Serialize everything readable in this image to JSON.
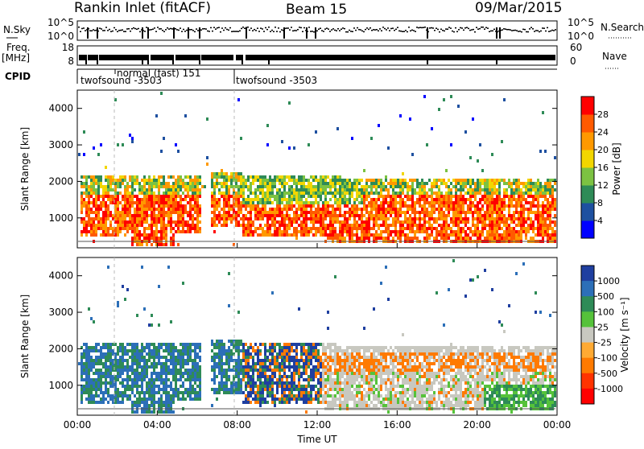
{
  "header": {
    "station": "Rankin Inlet (fitACF)",
    "beam": "Beam 15",
    "date": "09/Mar/2015"
  },
  "strips": {
    "nsky_label": "N.Sky",
    "nsky_ticks": [
      "10^5",
      "10^0"
    ],
    "nsearch_label": "N.Search",
    "nsearch_ticks": [
      "10^5",
      "10^0"
    ],
    "freq_label": "Freq.",
    "freq_unit": "[MHz]",
    "freq_ticks": [
      "18",
      "8"
    ],
    "nave_label": "Nave",
    "nave_ticks": [
      "60",
      "0"
    ],
    "cpid_label": "CPID",
    "cpid_segments": [
      "twofsound -3503",
      "normal (fast) 151",
      "twofsound -3503"
    ]
  },
  "chart_data": [
    {
      "type": "heatmap",
      "name": "power",
      "ylabel": "Slant Range [km]",
      "xlabel": "",
      "x_ticks": [
        "00:00",
        "04:00",
        "08:00",
        "12:00",
        "16:00",
        "20:00",
        "00:00"
      ],
      "y_ticks": [
        "1000",
        "2000",
        "3000",
        "4000"
      ],
      "ylim": [
        180,
        4500
      ],
      "colorbar_label": "Power [dB]",
      "colorbar_ticks": [
        "4",
        "8",
        "12",
        "16",
        "20",
        "24",
        "28"
      ],
      "colors": [
        "#0000ff",
        "#1e50a0",
        "#2e8b57",
        "#7cc242",
        "#f2d600",
        "#ff9900",
        "#ff5a00",
        "#ff0000"
      ]
    },
    {
      "type": "heatmap",
      "name": "velocity",
      "ylabel": "Slant Range [km]",
      "xlabel": "Time UT",
      "x_ticks": [
        "00:00",
        "04:00",
        "08:00",
        "12:00",
        "16:00",
        "20:00",
        "00:00"
      ],
      "y_ticks": [
        "1000",
        "2000",
        "3000",
        "4000"
      ],
      "ylim": [
        180,
        4500
      ],
      "colorbar_label": "Velocity [m s⁻¹]",
      "colorbar_ticks": [
        "1000",
        "500",
        "100",
        "25",
        "-25",
        "-100",
        "-500",
        "-1000"
      ],
      "colors": [
        "#1f3fa0",
        "#2c6fb8",
        "#2e8b57",
        "#55c23a",
        "#c8c8c0",
        "#ffaa33",
        "#ff7a00",
        "#ff3300",
        "#ff0000"
      ]
    }
  ]
}
